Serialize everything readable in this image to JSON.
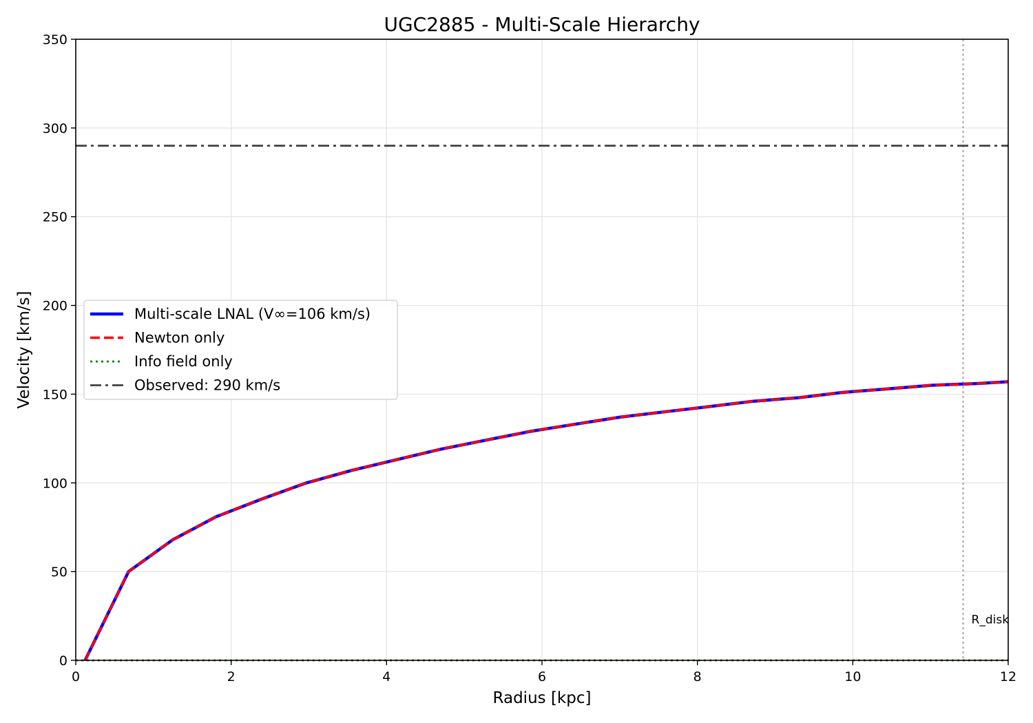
{
  "chart_data": {
    "type": "line",
    "title": "UGC2885 - Multi-Scale Hierarchy",
    "xlabel": "Radius [kpc]",
    "ylabel": "Velocity [km/s]",
    "xlim": [
      0,
      12
    ],
    "ylim": [
      0,
      350
    ],
    "xticks": [
      0,
      2,
      4,
      6,
      8,
      10,
      12
    ],
    "yticks": [
      0,
      50,
      100,
      150,
      200,
      250,
      300,
      350
    ],
    "grid": true,
    "legend_position": "center-left",
    "series": [
      {
        "name": "Multi-scale LNAL (V∞=106 km/s)",
        "style": "solid",
        "color": "#0000ff",
        "x": [
          0.12,
          0.68,
          1.25,
          1.81,
          2.4,
          2.97,
          3.55,
          4.12,
          4.7,
          5.27,
          5.85,
          6.42,
          7.0,
          7.57,
          8.15,
          8.72,
          9.3,
          9.87,
          10.45,
          11.02,
          11.6,
          12.0
        ],
        "y": [
          0,
          50,
          68,
          81,
          91,
          100,
          107,
          113,
          119,
          124,
          129,
          133,
          137,
          140,
          143,
          146,
          148,
          151,
          153,
          155,
          156,
          157
        ]
      },
      {
        "name": "Newton only",
        "style": "dashed",
        "color": "#ff0000",
        "x": [
          0.12,
          0.68,
          1.25,
          1.81,
          2.4,
          2.97,
          3.55,
          4.12,
          4.7,
          5.27,
          5.85,
          6.42,
          7.0,
          7.57,
          8.15,
          8.72,
          9.3,
          9.87,
          10.45,
          11.02,
          11.6,
          12.0
        ],
        "y": [
          0,
          50,
          68,
          81,
          91,
          100,
          107,
          113,
          119,
          124,
          129,
          133,
          137,
          140,
          143,
          146,
          148,
          151,
          153,
          155,
          156,
          157
        ]
      },
      {
        "name": "Info field only",
        "style": "dotted",
        "color": "#008000",
        "x": [
          0.0,
          12.0
        ],
        "y": [
          0,
          0
        ]
      },
      {
        "name": "Observed: 290 km/s",
        "style": "dashdot",
        "color": "#404040",
        "y_const": 290
      }
    ],
    "annotations": [
      {
        "text": "R_disk",
        "x": 11.42,
        "style": "dotted-vertical",
        "color": "#b0b0b0"
      }
    ]
  }
}
